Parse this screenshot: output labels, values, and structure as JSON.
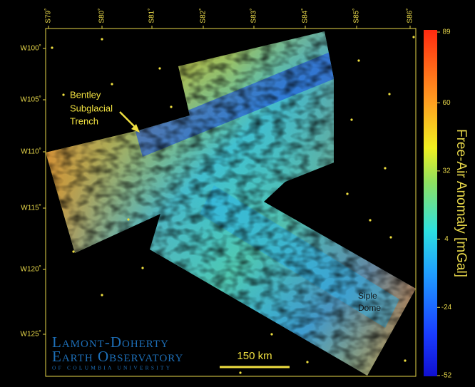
{
  "map": {
    "lat_labels": [
      "S79˚",
      "S80˚",
      "S81˚",
      "S82˚",
      "S83˚",
      "S84˚",
      "S85˚",
      "S86˚"
    ],
    "lon_labels": [
      "W100˚",
      "W105˚",
      "W110˚",
      "W115˚",
      "W120˚",
      "W125˚"
    ],
    "annotations": {
      "trench": [
        "Bentley",
        "Subglacial",
        "Trench"
      ],
      "dome": [
        "Siple",
        "Dome"
      ],
      "scale": "150 km"
    },
    "logo": [
      "Lamont-Doherty",
      "Earth Observatory",
      "OF COLUMBIA UNIVERSITY"
    ]
  },
  "colorbar": {
    "title": "Free-Air Anomaly [mGal]",
    "ticks": [
      89,
      60,
      32,
      4,
      -24,
      -52
    ]
  }
}
